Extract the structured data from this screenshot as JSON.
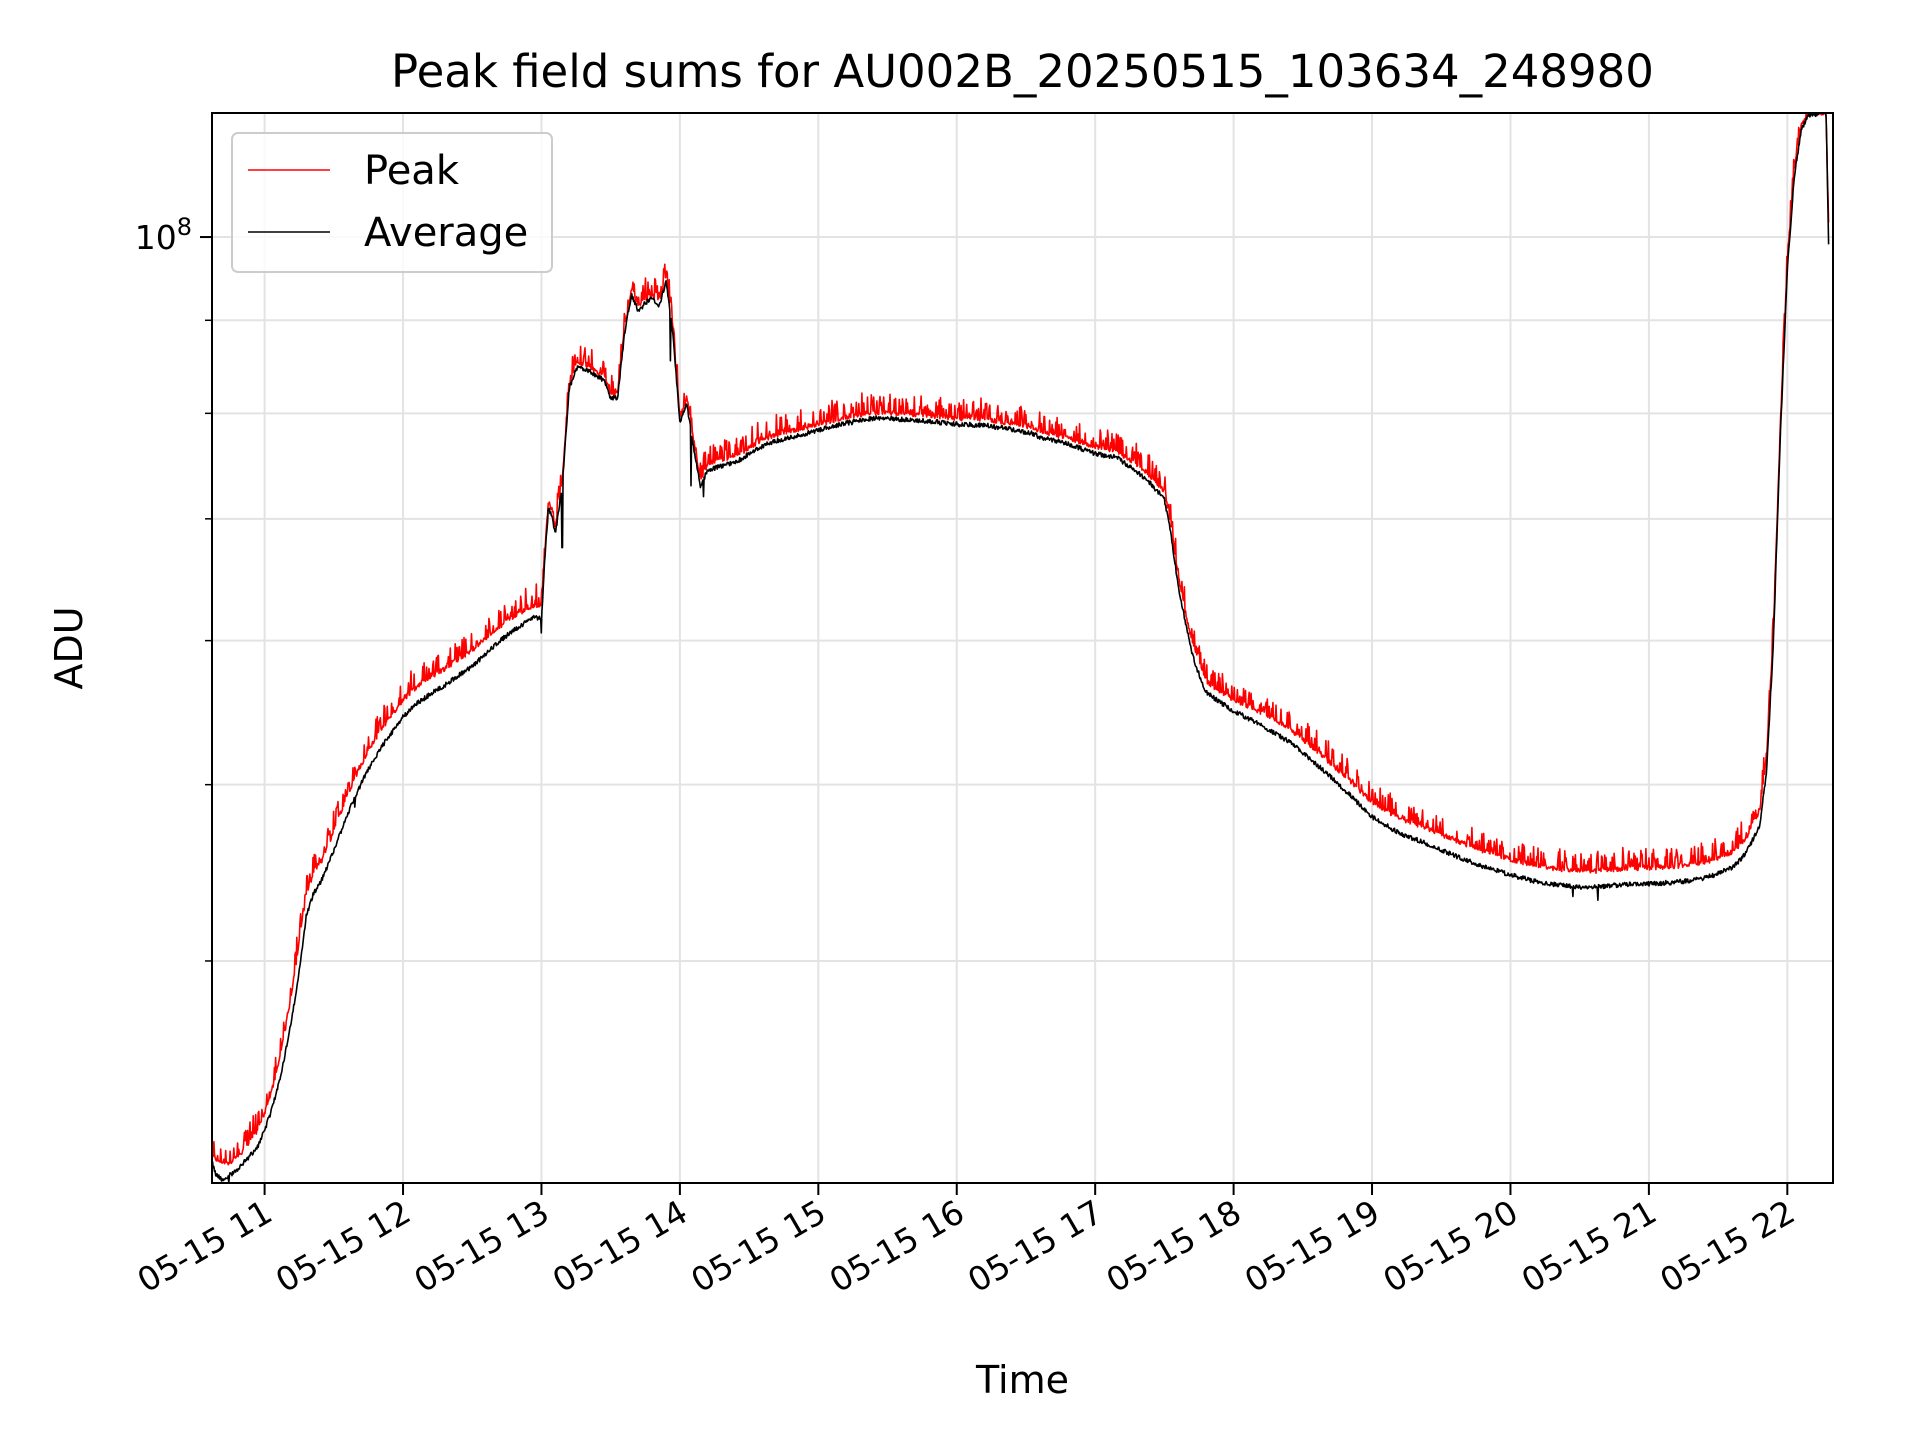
{
  "chart_data": {
    "type": "line",
    "title": "Peak field sums for AU002B_20250515_103634_248980",
    "xlabel": "Time",
    "ylabel": "ADU",
    "yscale": "log",
    "grid": true,
    "legend_position": "upper-left",
    "x_unit": "hour of day, 2025-05-15",
    "xlim": [
      10.62,
      22.33
    ],
    "ylim": [
      30200000,
      117000000
    ],
    "x_tick_values": [
      11,
      12,
      13,
      14,
      15,
      16,
      17,
      18,
      19,
      20,
      21,
      22
    ],
    "x_tick_labels": [
      "05-15 11",
      "05-15 12",
      "05-15 13",
      "05-15 14",
      "05-15 15",
      "05-15 16",
      "05-15 17",
      "05-15 18",
      "05-15 19",
      "05-15 20",
      "05-15 21",
      "05-15 22"
    ],
    "y_major_ticks": [
      {
        "value": 100000000,
        "base": "10",
        "exponent": "8"
      }
    ],
    "y_minor_ticks": [
      40000000,
      50000000,
      60000000,
      70000000,
      80000000,
      90000000
    ],
    "series": [
      {
        "name": "Peak",
        "color": "#ff0000"
      },
      {
        "name": "Average",
        "color": "#000000"
      }
    ],
    "x": [
      10.62,
      10.65,
      10.7,
      10.75,
      10.8,
      10.85,
      10.9,
      10.95,
      11.0,
      11.05,
      11.1,
      11.15,
      11.2,
      11.25,
      11.3,
      11.35,
      11.4,
      11.45,
      11.5,
      11.55,
      11.6,
      11.65,
      11.7,
      11.75,
      11.8,
      11.85,
      11.9,
      11.95,
      12.0,
      12.1,
      12.2,
      12.3,
      12.4,
      12.5,
      12.6,
      12.7,
      12.8,
      12.9,
      12.95,
      13.0,
      13.02,
      13.05,
      13.08,
      13.1,
      13.15,
      13.2,
      13.25,
      13.3,
      13.35,
      13.4,
      13.45,
      13.5,
      13.55,
      13.6,
      13.65,
      13.7,
      13.75,
      13.8,
      13.85,
      13.9,
      13.95,
      14.0,
      14.05,
      14.1,
      14.15,
      14.2,
      14.3,
      14.4,
      14.5,
      14.6,
      14.7,
      14.8,
      15.0,
      15.2,
      15.4,
      15.6,
      15.8,
      16.0,
      16.2,
      16.4,
      16.5,
      16.55,
      16.6,
      16.8,
      17.0,
      17.15,
      17.3,
      17.4,
      17.5,
      17.55,
      17.6,
      17.65,
      17.7,
      17.75,
      17.8,
      17.9,
      18.0,
      18.2,
      18.4,
      18.6,
      18.8,
      19.0,
      19.2,
      19.4,
      19.6,
      19.8,
      20.0,
      20.2,
      20.4,
      20.5,
      20.6,
      20.65,
      20.7,
      20.8,
      21.0,
      21.2,
      21.4,
      21.6,
      21.7,
      21.8,
      21.85,
      21.9,
      21.95,
      22.0,
      22.05,
      22.1,
      22.15,
      22.2,
      22.25,
      22.28,
      22.3,
      22.32,
      22.33
    ],
    "average": [
      31000000,
      30500000,
      30300000,
      30500000,
      30700000,
      31000000,
      31300000,
      31600000,
      32300000,
      33100000,
      34200000,
      35600000,
      37300000,
      39500000,
      42300000,
      43500000,
      44100000,
      45000000,
      46000000,
      47100000,
      48200000,
      49200000,
      50100000,
      51000000,
      51800000,
      52500000,
      53200000,
      53800000,
      54500000,
      55400000,
      56100000,
      56700000,
      57400000,
      58100000,
      59000000,
      60000000,
      60800000,
      61500000,
      61800000,
      61700000,
      65700000,
      71000000,
      70000000,
      68600000,
      73000000,
      82500000,
      84700000,
      84700000,
      84400000,
      83800000,
      83500000,
      81500000,
      81600000,
      88500000,
      93000000,
      91000000,
      92000000,
      92500000,
      91500000,
      94500000,
      88500000,
      79000000,
      81000000,
      76500000,
      72800000,
      74500000,
      74800000,
      75200000,
      76000000,
      76800000,
      77300000,
      77600000,
      78300000,
      79000000,
      79500000,
      79400000,
      79200000,
      78900000,
      78800000,
      78400000,
      78100000,
      78000000,
      77600000,
      77000000,
      76000000,
      75700000,
      74300000,
      73200000,
      71800000,
      68500000,
      64300000,
      61500000,
      59000000,
      57500000,
      56200000,
      55500000,
      54900000,
      53900000,
      52800000,
      51300000,
      49700000,
      48000000,
      47000000,
      46400000,
      45700000,
      45100000,
      44600000,
      44200000,
      44000000,
      43900000,
      43900000,
      43950000,
      44000000,
      44050000,
      44100000,
      44200000,
      44400000,
      45000000,
      45800000,
      47500000,
      50800000,
      60000000,
      78000000,
      96000000,
      108000000,
      114500000,
      116500000,
      116800000,
      116900000,
      116900000,
      98000000
    ],
    "peak": [
      31200000,
      31100000,
      31000000,
      31000000,
      31200000,
      31500000,
      31900000,
      32300000,
      33000000,
      33900000,
      35100000,
      36700000,
      38600000,
      41000000,
      43500000,
      44600000,
      45200000,
      46100000,
      47200000,
      48300000,
      49400000,
      50400000,
      51300000,
      52200000,
      53000000,
      53700000,
      54400000,
      55000000,
      55700000,
      56600000,
      57300000,
      57900000,
      58600000,
      59300000,
      60200000,
      61100000,
      61900000,
      62500000,
      62800000,
      62700000,
      66500000,
      71600000,
      70500000,
      69200000,
      73600000,
      83000000,
      85200000,
      85200000,
      84900000,
      84300000,
      84000000,
      82000000,
      82100000,
      89000000,
      93500000,
      91500000,
      92500000,
      93000000,
      92000000,
      95000000,
      89000000,
      79700000,
      81600000,
      77200000,
      73500000,
      75100000,
      75400000,
      75800000,
      76600000,
      77400000,
      77900000,
      78200000,
      78900000,
      79600000,
      80100000,
      80000000,
      79800000,
      79500000,
      79400000,
      79000000,
      78700000,
      78600000,
      78200000,
      77600000,
      76700000,
      76300000,
      75000000,
      73900000,
      72500000,
      69300000,
      65100000,
      62300000,
      59800000,
      58300000,
      57000000,
      56300000,
      55700000,
      54800000,
      53700000,
      52200000,
      50600000,
      48900000,
      47900000,
      47300000,
      46600000,
      46000000,
      45500000,
      45100000,
      44900000,
      44800000,
      44800000,
      44850000,
      44900000,
      44950000,
      45000000,
      45100000,
      45300000,
      45900000,
      46700000,
      48400000,
      51700000,
      61000000,
      79000000,
      97000000,
      109000000,
      115000000,
      117000000,
      117000000,
      117000000,
      117000000,
      99000000
    ],
    "dips_average": [
      [
        10.74,
        30200000
      ],
      [
        11.65,
        48600000
      ],
      [
        13.0,
        60600000
      ],
      [
        13.15,
        67500000
      ],
      [
        13.93,
        85500000
      ],
      [
        14.08,
        73000000
      ],
      [
        14.17,
        72000000
      ],
      [
        20.45,
        43400000
      ],
      [
        20.63,
        43200000
      ],
      [
        22.32,
        97500000
      ]
    ]
  }
}
